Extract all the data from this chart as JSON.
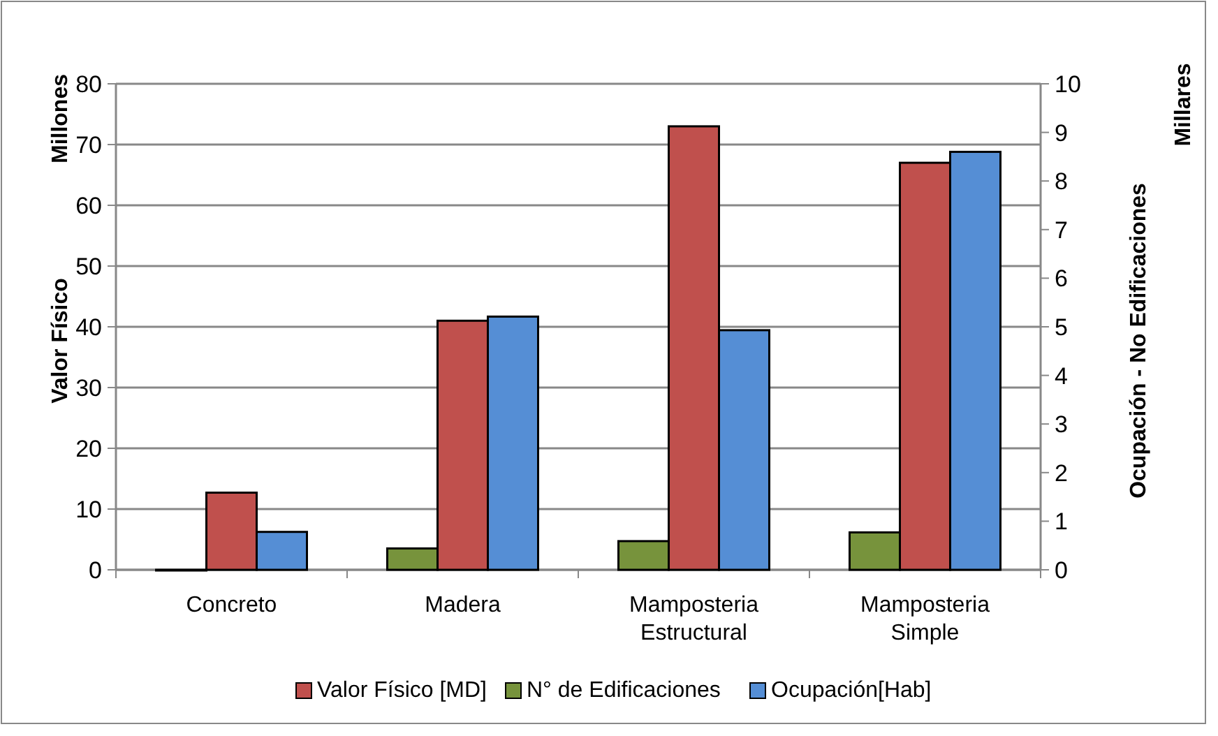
{
  "chart_data": {
    "type": "bar",
    "categories": [
      "Concreto",
      "Madera",
      "Mamposteria Estructural",
      "Mamposteria Simple"
    ],
    "ylabel": "Valor Físico",
    "y2label": "Ocupación - No Edificaciones",
    "annotations": [
      "Millones",
      "Millares"
    ],
    "ylim": [
      0,
      80
    ],
    "yticks": [
      0,
      10,
      20,
      30,
      40,
      50,
      60,
      70,
      80
    ],
    "y2lim": [
      0,
      10
    ],
    "y2ticks": [
      0,
      1,
      2,
      3,
      4,
      5,
      6,
      7,
      8,
      9,
      10
    ],
    "grid": "y",
    "legend": "bottom",
    "series": [
      {
        "name": "Valor Físico [MD]",
        "color": "#c0504d",
        "values": [
          12.7,
          41,
          73,
          67
        ]
      },
      {
        "name": "N° de Edificaciones",
        "color": "#77933c",
        "axis": "y2",
        "values": [
          0,
          0.44,
          0.59,
          0.77
        ]
      },
      {
        "name": "Ocupación[Hab]",
        "color": "#558ed5",
        "axis": "y2",
        "values": [
          0.78,
          5.21,
          4.93,
          8.6
        ]
      }
    ]
  }
}
